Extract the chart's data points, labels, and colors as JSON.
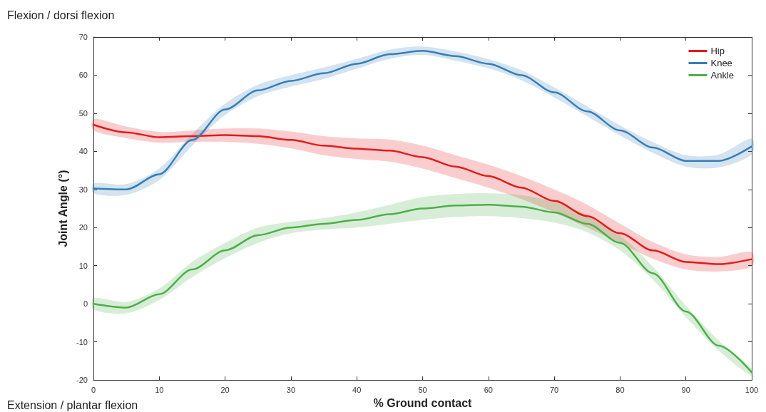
{
  "chart_data": {
    "type": "line",
    "xlabel": "% Ground contact",
    "ylabel": "Joint Angle (°)",
    "annotations": [
      "Flexion / dorsi flexion",
      "Extension / plantar flexion"
    ],
    "x": [
      0,
      5,
      10,
      15,
      20,
      25,
      30,
      35,
      40,
      45,
      50,
      55,
      60,
      65,
      70,
      75,
      80,
      85,
      90,
      95,
      100
    ],
    "series": [
      {
        "name": "Hip",
        "color": "#e41a1c",
        "values": [
          47,
          45,
          43.7,
          44,
          44.3,
          44,
          43,
          41.5,
          40.7,
          40.2,
          38.5,
          36,
          33.5,
          30.5,
          27,
          23,
          18.5,
          14,
          11,
          10.4,
          11.7
        ],
        "lower": [
          45.5,
          43.5,
          42.3,
          42.5,
          42.5,
          42,
          40.8,
          39,
          38,
          37.3,
          35.5,
          33,
          30.5,
          27.5,
          24,
          20,
          16,
          11.8,
          9,
          8.5,
          9.8
        ],
        "upper": [
          48.5,
          46.5,
          45.1,
          45.5,
          46,
          46,
          45.2,
          44,
          43.4,
          43.1,
          41.5,
          39,
          36.5,
          33.5,
          30,
          26,
          21,
          16.2,
          13,
          12.3,
          13.6
        ]
      },
      {
        "name": "Knee",
        "color": "#377eb8",
        "values": [
          30.3,
          30,
          34,
          43,
          51,
          56,
          58.5,
          60.5,
          63,
          65.5,
          66.4,
          65,
          63,
          60,
          55.5,
          50.5,
          45.5,
          41,
          37.5,
          37.5,
          41.3
        ],
        "lower": [
          29,
          28.6,
          32.5,
          41.5,
          49.5,
          54.5,
          57,
          59,
          61.7,
          64.3,
          65.3,
          63.8,
          61.8,
          58.7,
          54.2,
          49.2,
          44.2,
          39.6,
          36,
          35.8,
          39.2
        ],
        "upper": [
          31.6,
          31.4,
          35.5,
          44.5,
          52.5,
          57.5,
          60,
          62,
          64.3,
          66.7,
          67.5,
          66.2,
          64.2,
          61.3,
          56.8,
          51.8,
          46.8,
          42.4,
          39,
          39.2,
          43.4
        ]
      },
      {
        "name": "Ankle",
        "color": "#4daf4a",
        "values": [
          0,
          -1,
          2.5,
          9,
          14,
          18,
          20,
          21,
          22,
          23.5,
          25,
          25.8,
          26,
          25.5,
          24,
          21,
          16,
          8,
          -2,
          -11,
          -18
        ],
        "lower": [
          -1.5,
          -2.5,
          1,
          7,
          12,
          16,
          18.5,
          19.5,
          20,
          21,
          22,
          22.8,
          23,
          22.5,
          21.3,
          18.8,
          14,
          6.3,
          -3.5,
          -12.3,
          -19
        ],
        "upper": [
          1.5,
          0.5,
          4,
          11,
          16,
          20,
          21.5,
          22.5,
          24,
          26,
          28,
          28.8,
          29,
          28.5,
          26.7,
          23.2,
          18,
          9.7,
          -0.5,
          -9.7,
          -17
        ]
      }
    ],
    "xlim": [
      0,
      100
    ],
    "xticks": [
      0,
      10,
      20,
      30,
      40,
      50,
      60,
      70,
      80,
      90,
      100
    ],
    "ylim": [
      -20,
      70
    ],
    "yticks": [
      -20,
      -10,
      0,
      10,
      20,
      30,
      40,
      50,
      60,
      70
    ],
    "grid": false,
    "legend": "top right",
    "marker": "none",
    "line_style": "solid"
  }
}
